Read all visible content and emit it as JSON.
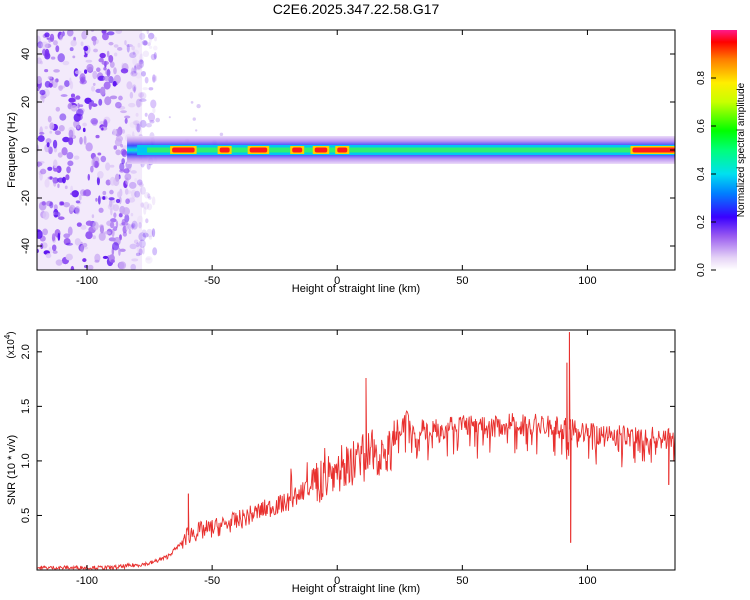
{
  "title": "C2E6.2025.347.22.58.G17",
  "chart_data": [
    {
      "type": "heatmap",
      "xlabel": "Height of straight line (km)",
      "ylabel": "Frequency (Hz)",
      "xlim": [
        -120,
        135
      ],
      "ylim": [
        -50,
        50
      ],
      "xticks": [
        -100,
        -50,
        0,
        50,
        100
      ],
      "yticks": [
        -40,
        -20,
        0,
        20,
        40
      ],
      "colorbar": {
        "label": "Normalized spectral amplitude",
        "range": [
          0,
          1
        ],
        "ticks": [
          0.0,
          0.2,
          0.4,
          0.6,
          0.8
        ]
      },
      "noise_region_x": [
        -120,
        -78
      ],
      "signal_band": {
        "center_hz": 0,
        "x_start": -84,
        "x_end": 135
      },
      "strong_segments": [
        [
          -66,
          -57
        ],
        [
          -47,
          -43
        ],
        [
          -35,
          -28
        ],
        [
          -18,
          -14
        ],
        [
          -9,
          -4
        ],
        [
          0,
          4
        ],
        [
          118,
          135
        ]
      ]
    },
    {
      "type": "line",
      "xlabel": "Height of straight line (km)",
      "ylabel": "SNR (10 * v/v)",
      "y_scale_label": "(x10",
      "y_scale_exponent": "4",
      "y_scale_close": ")",
      "xlim": [
        -120,
        135
      ],
      "ylim": [
        0,
        2.2
      ],
      "xticks": [
        -100,
        -50,
        50,
        100
      ],
      "xtick_zero": "0",
      "yticks": [
        0.5,
        1.0,
        1.5,
        2.0
      ],
      "ytick_labels": [
        "0.5",
        "1.0",
        "1.5",
        "2.0"
      ],
      "color": "#e8302e",
      "baseline_points": {
        "x": [
          -120,
          -90,
          -75,
          -68,
          -62,
          -61,
          -58,
          -50,
          -40,
          -30,
          -20,
          -10,
          0,
          5,
          10,
          15,
          20,
          25,
          30,
          40,
          50,
          60,
          70,
          80,
          90,
          95,
          100,
          110,
          120,
          135
        ],
        "y": [
          0.02,
          0.02,
          0.06,
          0.12,
          0.25,
          0.3,
          0.34,
          0.38,
          0.45,
          0.55,
          0.62,
          0.78,
          0.92,
          0.98,
          1.02,
          1.08,
          1.12,
          1.22,
          1.28,
          1.32,
          1.34,
          1.3,
          1.34,
          1.33,
          1.3,
          1.28,
          1.25,
          1.24,
          1.22,
          1.21
        ]
      },
      "spikes": [
        {
          "x": -59.5,
          "y": 0.7
        },
        {
          "x": 11.5,
          "y": 1.76
        },
        {
          "x": 92.8,
          "y": 2.18
        },
        {
          "x": 93.3,
          "y": 0.25
        },
        {
          "x": 91.8,
          "y": 1.9
        },
        {
          "x": 132.5,
          "y": 0.78
        }
      ]
    }
  ]
}
